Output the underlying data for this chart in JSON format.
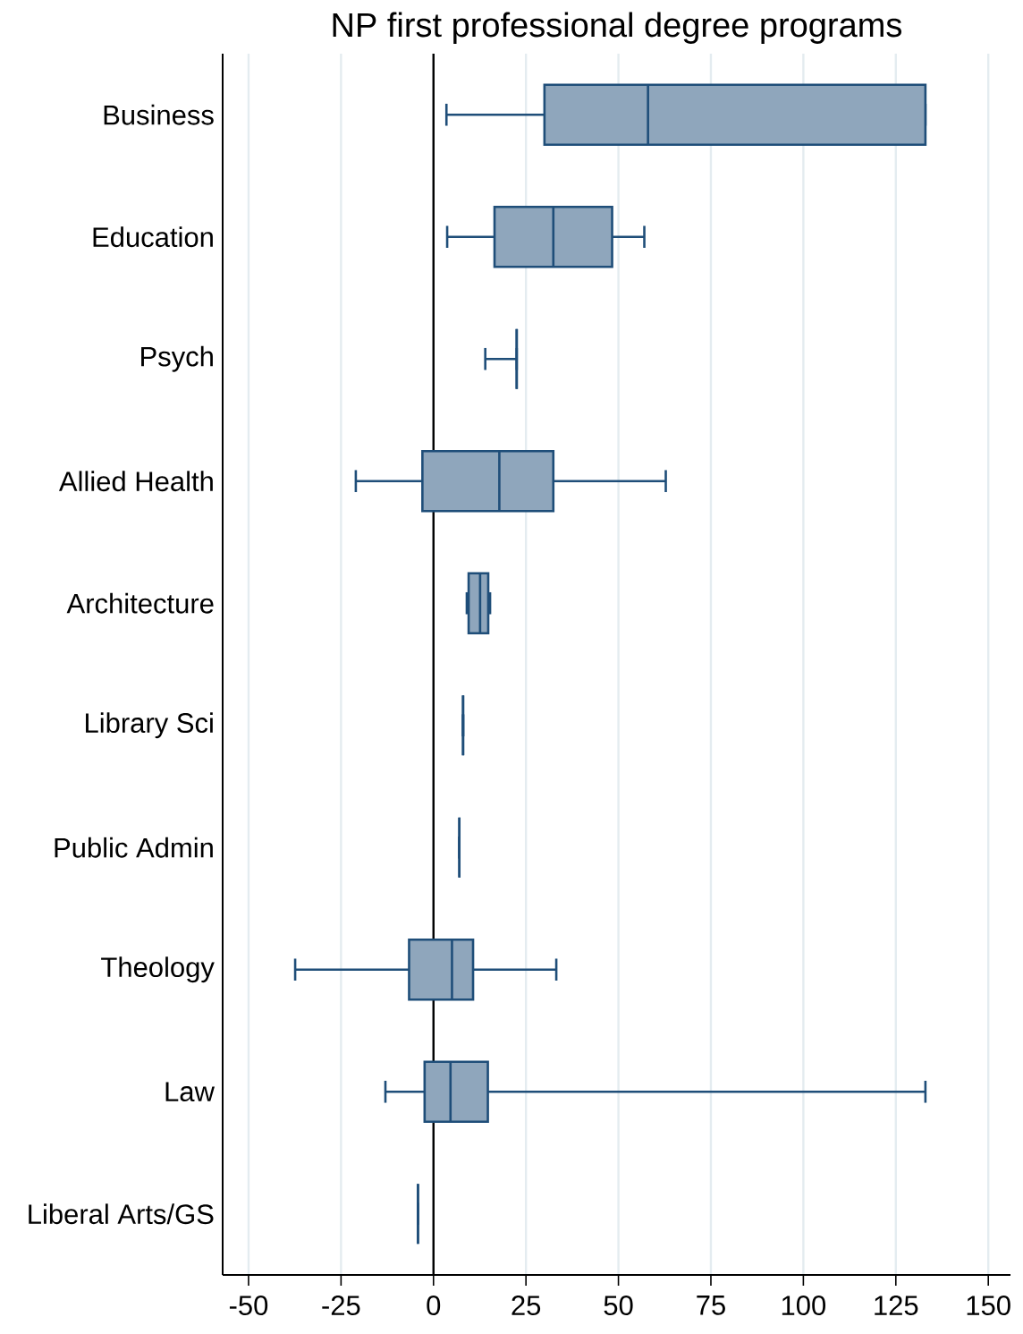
{
  "chart_data": {
    "type": "box",
    "title": "NP first professional degree programs",
    "orientation": "horizontal",
    "categories": [
      "Business",
      "Education",
      "Psych",
      "Allied Health",
      "Architecture",
      "Library Sci",
      "Public Admin",
      "Theology",
      "Law",
      "Liberal Arts/GS"
    ],
    "boxes": [
      {
        "low": 3.5,
        "q1": 30,
        "median": 58,
        "q3": 133,
        "high": 133
      },
      {
        "low": 3.7,
        "q1": 16.5,
        "median": 32.4,
        "q3": 48.3,
        "high": 57
      },
      {
        "low": 14,
        "q1": 22.5,
        "median": 22.5,
        "q3": 22.5,
        "high": 22.5
      },
      {
        "low": -21,
        "q1": -3,
        "median": 17.8,
        "q3": 32.4,
        "high": 62.8
      },
      {
        "low": 9,
        "q1": 9.5,
        "median": 12.6,
        "q3": 14.8,
        "high": 15.3
      },
      {
        "low": 8,
        "q1": 8,
        "median": 8,
        "q3": 8,
        "high": 8
      },
      {
        "low": 7,
        "q1": 7,
        "median": 7,
        "q3": 7,
        "high": 7
      },
      {
        "low": -37.4,
        "q1": -6.6,
        "median": 5,
        "q3": 10.7,
        "high": 33.2
      },
      {
        "low": -13,
        "q1": -2.4,
        "median": 4.6,
        "q3": 14.7,
        "high": 133
      },
      {
        "low": -4.2,
        "q1": -4.2,
        "median": -4.2,
        "q3": -4.2,
        "high": -4.2
      }
    ],
    "color": "#1f4e79",
    "xlim": [
      -57,
      156
    ],
    "xticks": [
      -50,
      -25,
      0,
      25,
      50,
      75,
      100,
      125,
      150
    ],
    "grid": "x",
    "ref_lines": [
      {
        "axis": "x",
        "value": 0,
        "color": "#000000"
      }
    ]
  }
}
